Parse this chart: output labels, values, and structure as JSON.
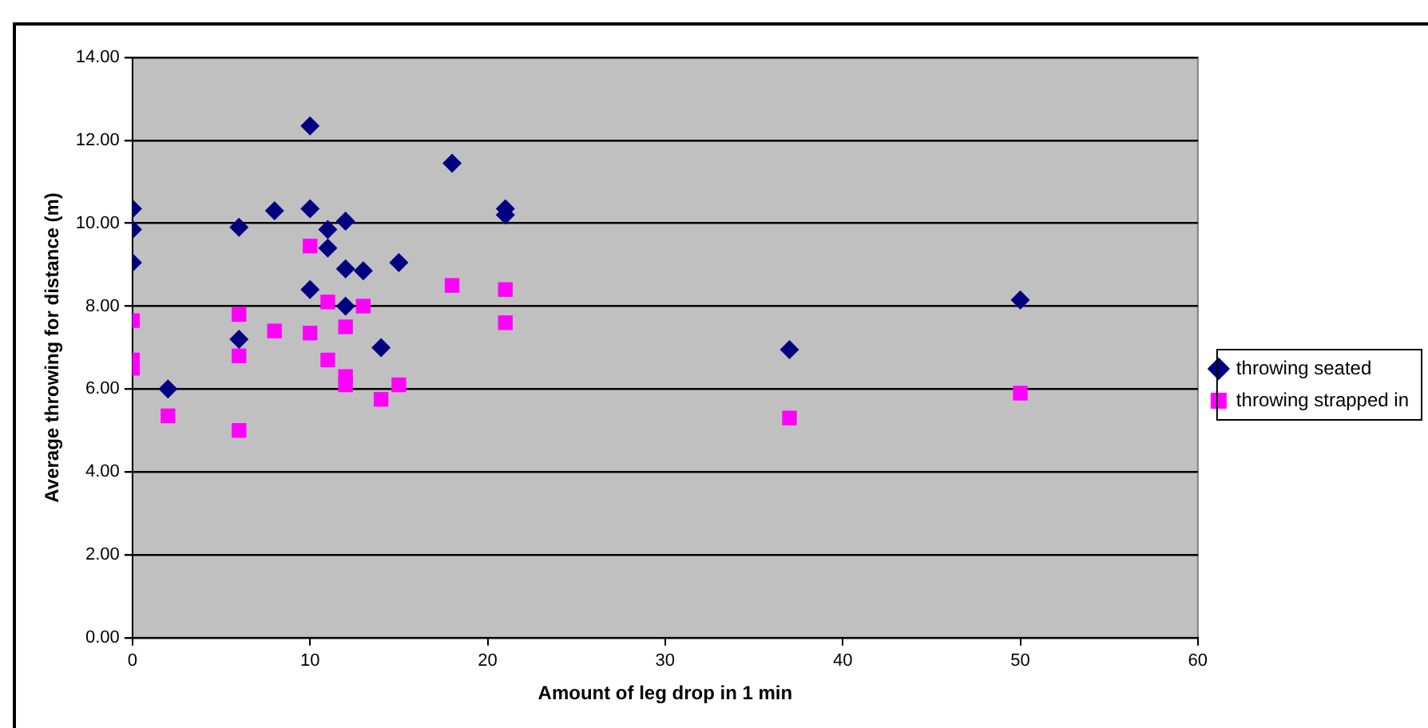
{
  "chart_data": {
    "type": "scatter",
    "xlabel": "Amount of leg drop in 1 min",
    "ylabel": "Average throwing for distance (m)",
    "xlim": [
      0,
      60
    ],
    "xticks": [
      0,
      10,
      20,
      30,
      40,
      50,
      60
    ],
    "ylim": [
      0,
      14
    ],
    "yticks": [
      {
        "value": 0,
        "label": "0.00"
      },
      {
        "value": 2,
        "label": "2.00"
      },
      {
        "value": 4,
        "label": "4.00"
      },
      {
        "value": 6,
        "label": "6.00"
      },
      {
        "value": 8,
        "label": "8.00"
      },
      {
        "value": 10,
        "label": "10.00"
      },
      {
        "value": 12,
        "label": "12.00"
      },
      {
        "value": 14,
        "label": "14.00"
      }
    ],
    "grid": "y",
    "legend": "right",
    "series": [
      {
        "name": "throwing seated",
        "color": "#000080",
        "marker": "diamond",
        "x": [
          0,
          0,
          0,
          2,
          6,
          6,
          8,
          10,
          10,
          10,
          11,
          11,
          12,
          12,
          12,
          13,
          14,
          15,
          18,
          21,
          21,
          37,
          50
        ],
        "values": [
          10.35,
          9.85,
          9.05,
          6.0,
          9.9,
          7.2,
          10.3,
          12.35,
          10.35,
          8.4,
          9.85,
          9.4,
          10.05,
          8.9,
          8.0,
          8.85,
          7.0,
          9.05,
          11.45,
          10.35,
          10.2,
          6.95,
          8.15
        ]
      },
      {
        "name": "throwing strapped in",
        "color": "#ff00ff",
        "marker": "square",
        "x": [
          0,
          0,
          0,
          2,
          6,
          6,
          6,
          8,
          10,
          10,
          11,
          11,
          12,
          12,
          12,
          13,
          14,
          15,
          18,
          21,
          21,
          37,
          50
        ],
        "values": [
          7.65,
          6.7,
          6.5,
          5.35,
          7.8,
          6.8,
          5.0,
          7.4,
          9.45,
          7.35,
          8.1,
          6.7,
          7.5,
          6.3,
          6.1,
          8.0,
          5.75,
          6.1,
          8.5,
          8.4,
          7.6,
          5.3,
          5.9
        ]
      }
    ]
  }
}
